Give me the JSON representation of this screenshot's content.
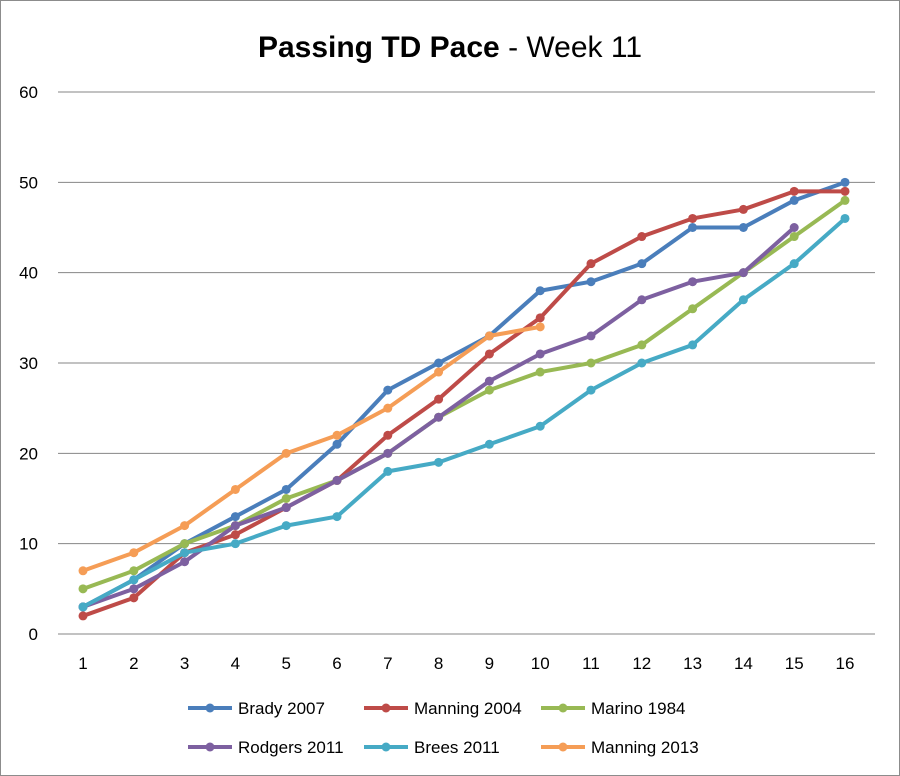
{
  "chart_data": {
    "type": "line",
    "title_main": "Passing TD Pace",
    "title_sep": " - ",
    "title_sub": "Week 11",
    "xlabel": "",
    "ylabel": "",
    "x": [
      1,
      2,
      3,
      4,
      5,
      6,
      7,
      8,
      9,
      10,
      11,
      12,
      13,
      14,
      15,
      16
    ],
    "ylim": [
      0,
      60
    ],
    "yticks": [
      0,
      10,
      20,
      30,
      40,
      50,
      60
    ],
    "grid": true,
    "legend_position": "bottom",
    "series": [
      {
        "name": "Brady 2007",
        "color": "#4a7ebb",
        "values": [
          3,
          6,
          10,
          13,
          16,
          21,
          27,
          30,
          33,
          38,
          39,
          41,
          45,
          45,
          48,
          50
        ]
      },
      {
        "name": "Manning 2004",
        "color": "#be4b48",
        "values": [
          2,
          4,
          9,
          11,
          14,
          17,
          22,
          26,
          31,
          35,
          41,
          44,
          46,
          47,
          49,
          49
        ]
      },
      {
        "name": "Marino 1984",
        "color": "#98b954",
        "values": [
          5,
          7,
          10,
          12,
          15,
          17,
          20,
          24,
          27,
          29,
          30,
          32,
          36,
          40,
          44,
          48
        ]
      },
      {
        "name": "Rodgers 2011",
        "color": "#7d60a0",
        "values": [
          3,
          5,
          8,
          12,
          14,
          17,
          20,
          24,
          28,
          31,
          33,
          37,
          39,
          40,
          45,
          null
        ]
      },
      {
        "name": "Brees 2011",
        "color": "#46aac5",
        "values": [
          3,
          6,
          9,
          10,
          12,
          13,
          18,
          19,
          21,
          23,
          27,
          30,
          32,
          37,
          41,
          46
        ]
      },
      {
        "name": "Manning 2013",
        "color": "#f59d56",
        "values": [
          7,
          9,
          12,
          16,
          20,
          22,
          25,
          29,
          33,
          34,
          null,
          null,
          null,
          null,
          null,
          null
        ]
      }
    ]
  }
}
